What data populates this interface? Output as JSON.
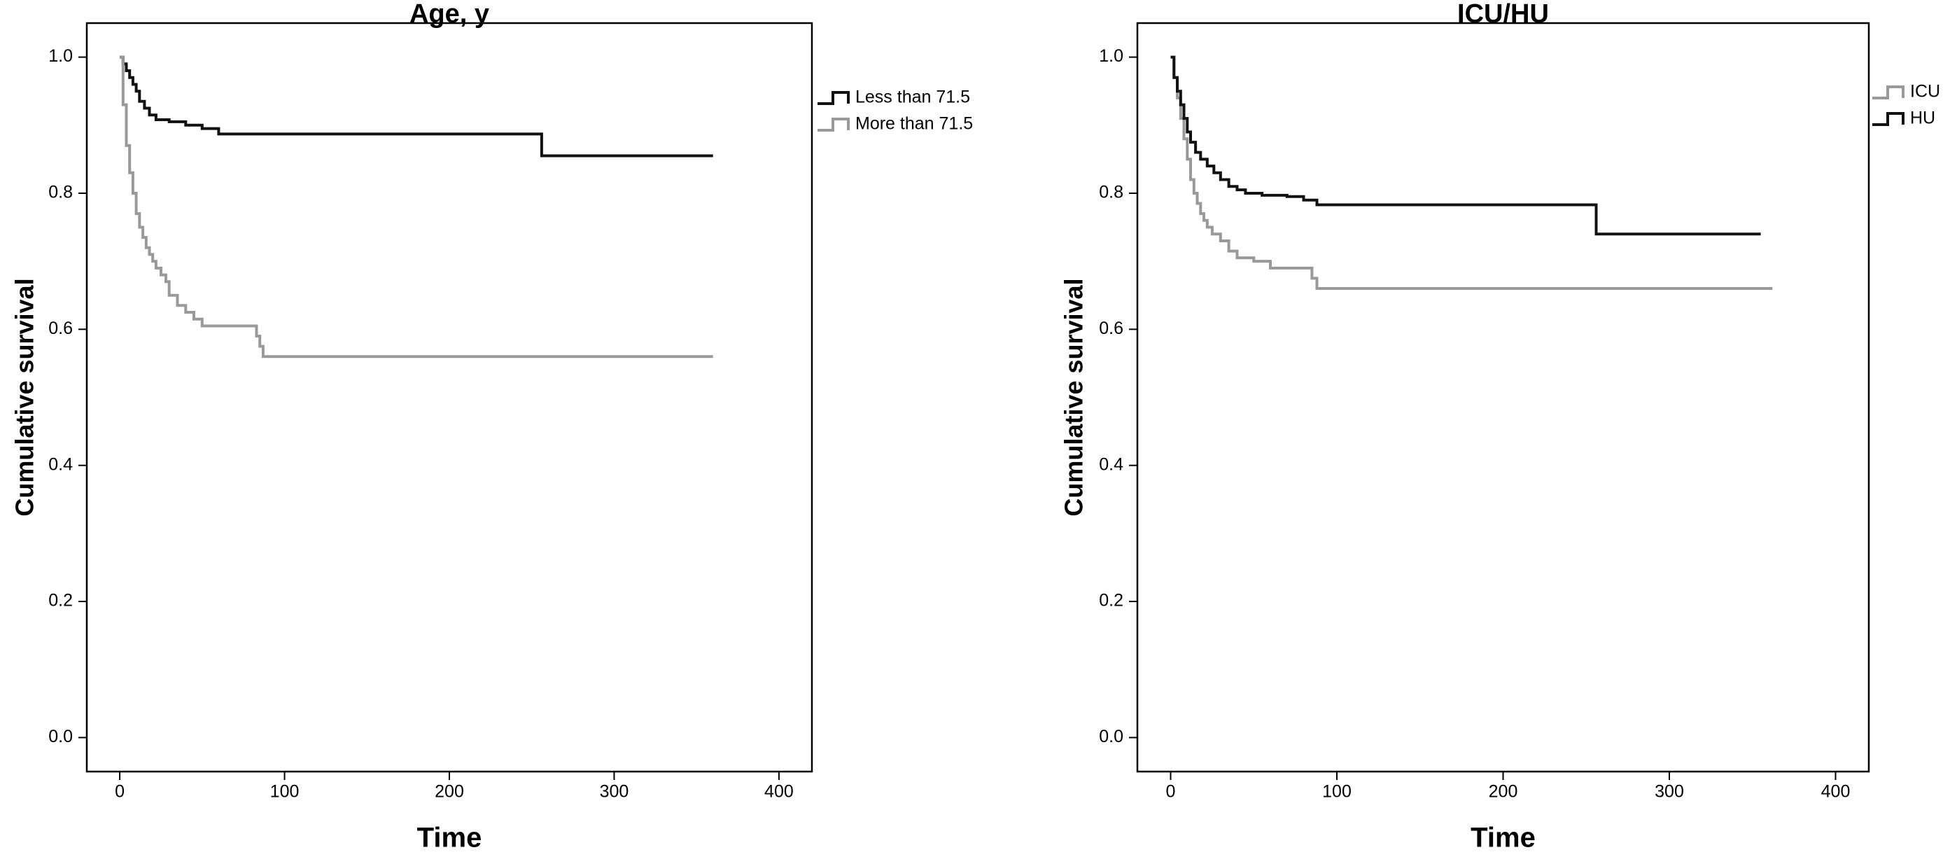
{
  "chart_data": [
    {
      "type": "line",
      "step": true,
      "title": "Age, y",
      "xlabel": "Time",
      "ylabel": "Cumulative survival",
      "xlim": [
        -20,
        420
      ],
      "ylim": [
        -0.05,
        1.05
      ],
      "x_ticks": [
        0,
        100,
        200,
        300,
        400
      ],
      "y_ticks": [
        0.0,
        0.2,
        0.4,
        0.6,
        0.8,
        1.0
      ],
      "x_tick_labels": [
        "0",
        "100",
        "200",
        "300",
        "400"
      ],
      "y_tick_labels": [
        "0.0",
        "0.2",
        "0.4",
        "0.6",
        "0.8",
        "1.0"
      ],
      "grid": false,
      "legend_position": "right",
      "series": [
        {
          "name": "Less than 71.5",
          "color": "#111111",
          "x": [
            0,
            2,
            4,
            6,
            8,
            10,
            12,
            15,
            18,
            22,
            30,
            40,
            50,
            60,
            80,
            120,
            200,
            256,
            360
          ],
          "y": [
            1.0,
            0.99,
            0.98,
            0.97,
            0.96,
            0.95,
            0.935,
            0.925,
            0.915,
            0.908,
            0.905,
            0.9,
            0.895,
            0.887,
            0.887,
            0.887,
            0.887,
            0.855,
            0.855
          ]
        },
        {
          "name": "More than 71.5",
          "color": "#999999",
          "x": [
            0,
            2,
            4,
            6,
            8,
            10,
            12,
            14,
            16,
            18,
            20,
            22,
            25,
            28,
            30,
            35,
            40,
            45,
            50,
            60,
            70,
            80,
            83,
            85,
            87,
            100,
            200,
            360
          ],
          "y": [
            1.0,
            0.93,
            0.87,
            0.83,
            0.8,
            0.77,
            0.75,
            0.735,
            0.72,
            0.71,
            0.7,
            0.69,
            0.68,
            0.67,
            0.65,
            0.635,
            0.625,
            0.615,
            0.605,
            0.605,
            0.605,
            0.605,
            0.59,
            0.575,
            0.56,
            0.56,
            0.56,
            0.56
          ]
        }
      ]
    },
    {
      "type": "line",
      "step": true,
      "title": "ICU/HU",
      "xlabel": "Time",
      "ylabel": "Cumulative survival",
      "xlim": [
        -20,
        420
      ],
      "ylim": [
        -0.05,
        1.05
      ],
      "x_ticks": [
        0,
        100,
        200,
        300,
        400
      ],
      "y_ticks": [
        0.0,
        0.2,
        0.4,
        0.6,
        0.8,
        1.0
      ],
      "x_tick_labels": [
        "0",
        "100",
        "200",
        "300",
        "400"
      ],
      "y_tick_labels": [
        "0.0",
        "0.2",
        "0.4",
        "0.6",
        "0.8",
        "1.0"
      ],
      "grid": false,
      "legend_position": "top-right",
      "series": [
        {
          "name": "ICU",
          "color": "#999999",
          "x": [
            0,
            2,
            4,
            6,
            8,
            10,
            12,
            14,
            16,
            18,
            20,
            22,
            25,
            30,
            35,
            40,
            50,
            60,
            70,
            85,
            88,
            200,
            362
          ],
          "y": [
            1.0,
            0.97,
            0.94,
            0.91,
            0.88,
            0.85,
            0.82,
            0.8,
            0.785,
            0.77,
            0.76,
            0.75,
            0.74,
            0.73,
            0.715,
            0.705,
            0.7,
            0.69,
            0.69,
            0.675,
            0.66,
            0.66,
            0.66
          ]
        },
        {
          "name": "HU",
          "color": "#111111",
          "x": [
            0,
            2,
            4,
            6,
            8,
            10,
            12,
            15,
            18,
            22,
            26,
            30,
            35,
            40,
            45,
            55,
            70,
            80,
            88,
            150,
            200,
            256,
            355
          ],
          "y": [
            1.0,
            0.97,
            0.95,
            0.93,
            0.91,
            0.89,
            0.875,
            0.86,
            0.85,
            0.84,
            0.83,
            0.82,
            0.81,
            0.805,
            0.8,
            0.797,
            0.795,
            0.79,
            0.783,
            0.783,
            0.783,
            0.74,
            0.74
          ]
        }
      ]
    }
  ]
}
